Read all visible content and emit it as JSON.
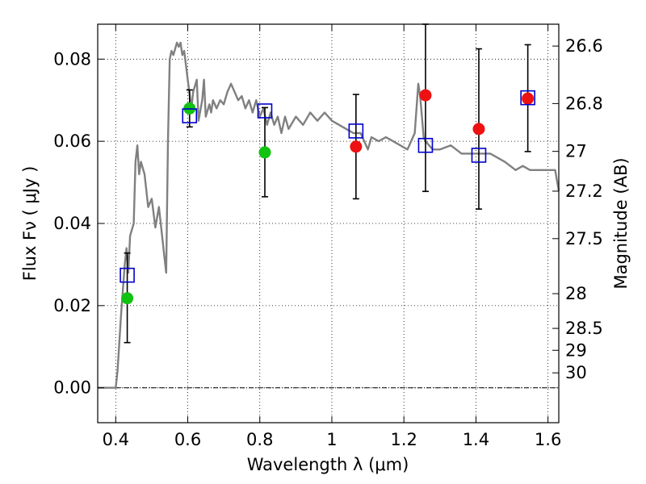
{
  "chart_data": {
    "type": "scatter",
    "xlabel": "Wavelength  λ (μm)",
    "ylabel": "Flux  Fν  ( μJy )",
    "y2label": "Magnitude (AB)",
    "xlim": [
      0.35,
      1.63
    ],
    "ylim": [
      -0.0085,
      0.0885
    ],
    "xticks": [
      0.4,
      0.6,
      0.8,
      1.0,
      1.2,
      1.4,
      1.6
    ],
    "xtick_labels": [
      "0.4",
      "0.6",
      "0.8",
      "1",
      "1.2",
      "1.4",
      "1.6"
    ],
    "yticks": [
      0.0,
      0.02,
      0.04,
      0.06,
      0.08
    ],
    "ytick_labels": [
      "0.00",
      "0.02",
      "0.04",
      "0.06",
      "0.08"
    ],
    "mag_ticks": [
      26.6,
      26.8,
      27,
      27.2,
      27.5,
      28,
      28.5,
      29,
      30
    ],
    "mag_tick_labels": [
      "26.6",
      "26.8",
      "27",
      "27.2",
      "27.5",
      "28",
      "28.5",
      "29",
      "30"
    ],
    "grid": true,
    "colors": {
      "model": "#808080",
      "green": "#11c211",
      "red": "#ee1111",
      "squares": "#0000cc",
      "errorbars": "#000000"
    },
    "series": [
      {
        "kind": "line",
        "x": [
          0.35,
          0.4,
          0.405,
          0.415,
          0.425,
          0.43,
          0.435,
          0.44,
          0.45,
          0.455,
          0.46,
          0.465,
          0.47,
          0.48,
          0.49,
          0.5,
          0.51,
          0.52,
          0.53,
          0.535,
          0.54,
          0.545,
          0.55,
          0.555,
          0.56,
          0.57,
          0.575,
          0.58,
          0.585,
          0.59,
          0.6,
          0.61,
          0.615,
          0.625,
          0.63,
          0.64,
          0.645,
          0.65,
          0.66,
          0.665,
          0.67,
          0.68,
          0.69,
          0.7,
          0.71,
          0.72,
          0.73,
          0.74,
          0.75,
          0.76,
          0.77,
          0.78,
          0.79,
          0.8,
          0.81,
          0.82,
          0.83,
          0.84,
          0.85,
          0.86,
          0.87,
          0.88,
          0.9,
          0.92,
          0.94,
          0.96,
          0.98,
          1.0,
          1.02,
          1.04,
          1.06,
          1.08,
          1.1,
          1.11,
          1.13,
          1.15,
          1.17,
          1.19,
          1.21,
          1.23,
          1.24,
          1.245,
          1.255,
          1.26,
          1.28,
          1.3,
          1.33,
          1.36,
          1.4,
          1.44,
          1.48,
          1.51,
          1.53,
          1.55,
          1.58,
          1.6,
          1.62,
          1.63
        ],
        "y": [
          0.0,
          0.0,
          0.004,
          0.018,
          0.03,
          0.034,
          0.028,
          0.037,
          0.04,
          0.055,
          0.059,
          0.052,
          0.055,
          0.052,
          0.044,
          0.046,
          0.039,
          0.044,
          0.036,
          0.032,
          0.028,
          0.06,
          0.08,
          0.082,
          0.081,
          0.084,
          0.083,
          0.084,
          0.081,
          0.082,
          0.075,
          0.068,
          0.072,
          0.075,
          0.065,
          0.07,
          0.075,
          0.066,
          0.069,
          0.067,
          0.07,
          0.068,
          0.07,
          0.069,
          0.072,
          0.074,
          0.072,
          0.07,
          0.071,
          0.068,
          0.07,
          0.067,
          0.07,
          0.066,
          0.068,
          0.064,
          0.067,
          0.064,
          0.066,
          0.062,
          0.066,
          0.063,
          0.066,
          0.064,
          0.067,
          0.065,
          0.067,
          0.065,
          0.064,
          0.063,
          0.062,
          0.062,
          0.058,
          0.061,
          0.06,
          0.061,
          0.06,
          0.059,
          0.058,
          0.062,
          0.074,
          0.071,
          0.061,
          0.06,
          0.058,
          0.058,
          0.059,
          0.057,
          0.057,
          0.057,
          0.055,
          0.053,
          0.054,
          0.053,
          0.053,
          0.053,
          0.053,
          0.048
        ]
      },
      {
        "kind": "points",
        "marker": "circle",
        "color": "green",
        "x": [
          0.432,
          0.605,
          0.814
        ],
        "y": [
          0.0218,
          0.068,
          0.0573
        ]
      },
      {
        "kind": "points",
        "marker": "circle",
        "color": "red",
        "x": [
          1.067,
          1.26,
          1.408,
          1.544
        ],
        "y": [
          0.0587,
          0.0712,
          0.063,
          0.0704
        ]
      },
      {
        "kind": "points",
        "marker": "open-square",
        "color": "squares",
        "x": [
          0.432,
          0.605,
          0.814,
          1.067,
          1.26,
          1.408,
          1.544
        ],
        "y": [
          0.0274,
          0.0662,
          0.0674,
          0.0625,
          0.059,
          0.0566,
          0.0706
        ]
      },
      {
        "kind": "errorbars",
        "x": [
          0.432,
          0.605,
          0.814,
          1.067,
          1.26,
          1.408,
          1.544
        ],
        "ylow": [
          0.011,
          0.0635,
          0.0465,
          0.046,
          0.0478,
          0.0435,
          0.0575
        ],
        "yhigh": [
          0.0328,
          0.0725,
          0.0682,
          0.0714,
          0.0885,
          0.0825,
          0.0835
        ]
      }
    ]
  }
}
